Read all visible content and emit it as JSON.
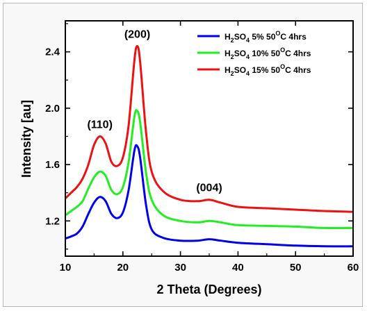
{
  "chart_data": {
    "type": "line",
    "title": "",
    "xlabel": "2 Theta (Degrees)",
    "ylabel": "Intensity [au]",
    "xlim": [
      10,
      60
    ],
    "ylim": [
      0.95,
      2.62
    ],
    "x_ticks": [
      10,
      20,
      30,
      40,
      50,
      60
    ],
    "x_tick_labels": [
      "10",
      "20",
      "30",
      "40",
      "50",
      "60"
    ],
    "y_ticks": [
      1.2,
      1.6,
      2.0,
      2.4
    ],
    "y_tick_labels": [
      "1.2",
      "1.6",
      "2.0",
      "2.4"
    ],
    "grid": false,
    "legend_position": "top-right",
    "annotations": [
      {
        "text": "(110)",
        "x": 16,
        "y": 1.86
      },
      {
        "text": "(200)",
        "x": 22.5,
        "y": 2.5
      },
      {
        "text": "(004)",
        "x": 35,
        "y": 1.41
      }
    ],
    "series": [
      {
        "name": "H2SO4 5% 50oC 4hrs",
        "legend": {
          "main": "H",
          "s1": "2",
          "mid": "SO",
          "s2": "4",
          "pct": " 5% 50",
          "sup": "O",
          "tail": "C 4hrs"
        },
        "color": "#0000ee",
        "points": [
          [
            10,
            1.075
          ],
          [
            11,
            1.09
          ],
          [
            12,
            1.11
          ],
          [
            13,
            1.16
          ],
          [
            14,
            1.25
          ],
          [
            15,
            1.33
          ],
          [
            16,
            1.37
          ],
          [
            17,
            1.34
          ],
          [
            18,
            1.25
          ],
          [
            19,
            1.22
          ],
          [
            20,
            1.26
          ],
          [
            21,
            1.42
          ],
          [
            22,
            1.7
          ],
          [
            22.5,
            1.73
          ],
          [
            23,
            1.65
          ],
          [
            24,
            1.32
          ],
          [
            25,
            1.14
          ],
          [
            27,
            1.08
          ],
          [
            30,
            1.06
          ],
          [
            33,
            1.06
          ],
          [
            35,
            1.07
          ],
          [
            37,
            1.06
          ],
          [
            40,
            1.045
          ],
          [
            45,
            1.035
          ],
          [
            50,
            1.025
          ],
          [
            55,
            1.02
          ],
          [
            60,
            1.02
          ]
        ]
      },
      {
        "name": "H2SO4 10% 50oC 4hrs",
        "legend": {
          "main": "H",
          "s1": "2",
          "mid": "SO",
          "s2": "4",
          "pct": " 10% 50",
          "sup": "O",
          "tail": "C 4hrs"
        },
        "color": "#22ee22",
        "points": [
          [
            10,
            1.24
          ],
          [
            11,
            1.27
          ],
          [
            12,
            1.3
          ],
          [
            13,
            1.34
          ],
          [
            14,
            1.43
          ],
          [
            15,
            1.51
          ],
          [
            16,
            1.55
          ],
          [
            17,
            1.52
          ],
          [
            18,
            1.42
          ],
          [
            19,
            1.39
          ],
          [
            20,
            1.44
          ],
          [
            21,
            1.62
          ],
          [
            22,
            1.94
          ],
          [
            22.5,
            1.98
          ],
          [
            23,
            1.9
          ],
          [
            24,
            1.55
          ],
          [
            25,
            1.35
          ],
          [
            27,
            1.24
          ],
          [
            30,
            1.2
          ],
          [
            33,
            1.19
          ],
          [
            35,
            1.2
          ],
          [
            37,
            1.19
          ],
          [
            40,
            1.17
          ],
          [
            45,
            1.165
          ],
          [
            50,
            1.16
          ],
          [
            55,
            1.15
          ],
          [
            60,
            1.15
          ]
        ]
      },
      {
        "name": "H2SO4 15% 50oC 4hrs",
        "legend": {
          "main": "H",
          "s1": "2",
          "mid": "SO",
          "s2": "4",
          "pct": " 15% 50",
          "sup": "O",
          "tail": "C 4hrs"
        },
        "color": "#ee1111",
        "points": [
          [
            10,
            1.36
          ],
          [
            11,
            1.4
          ],
          [
            12,
            1.44
          ],
          [
            13,
            1.5
          ],
          [
            14,
            1.6
          ],
          [
            15,
            1.74
          ],
          [
            16,
            1.8
          ],
          [
            17,
            1.75
          ],
          [
            18,
            1.62
          ],
          [
            19,
            1.59
          ],
          [
            20,
            1.65
          ],
          [
            21,
            1.88
          ],
          [
            22,
            2.34
          ],
          [
            22.5,
            2.44
          ],
          [
            23,
            2.33
          ],
          [
            24,
            1.84
          ],
          [
            25,
            1.55
          ],
          [
            27,
            1.41
          ],
          [
            30,
            1.35
          ],
          [
            33,
            1.34
          ],
          [
            35,
            1.35
          ],
          [
            37,
            1.33
          ],
          [
            40,
            1.3
          ],
          [
            45,
            1.29
          ],
          [
            50,
            1.28
          ],
          [
            55,
            1.27
          ],
          [
            60,
            1.265
          ]
        ]
      }
    ]
  }
}
